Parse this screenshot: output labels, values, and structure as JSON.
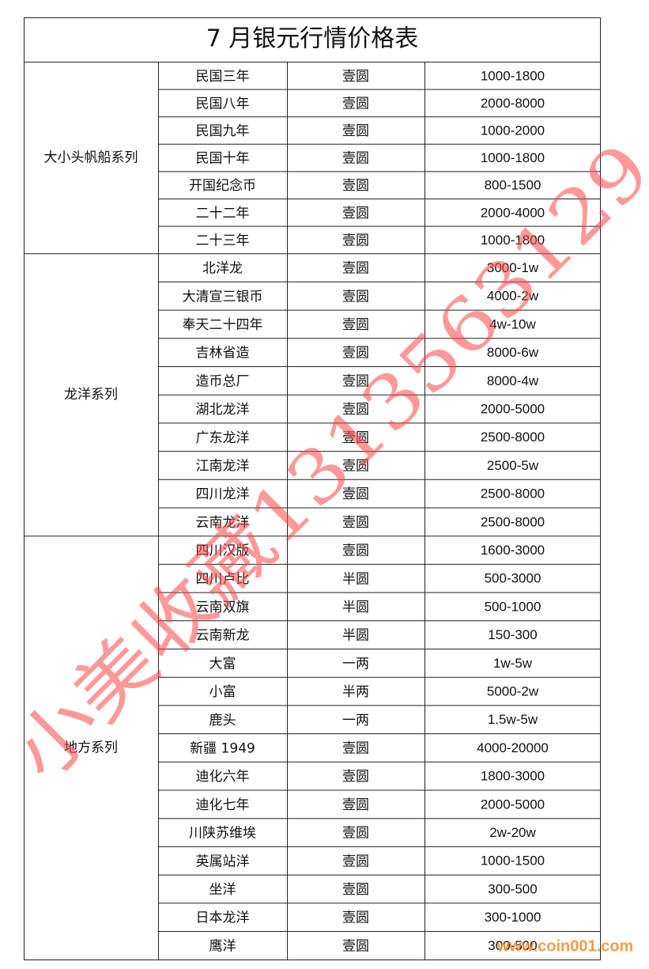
{
  "title": "7 月银元行情价格表",
  "groups": [
    {
      "name": "大小头帆船系列",
      "rows": [
        [
          "民国三年",
          "壹圆",
          "1000-1800"
        ],
        [
          "民国八年",
          "壹圆",
          "2000-8000"
        ],
        [
          "民国九年",
          "壹圆",
          "1000-2000"
        ],
        [
          "民国十年",
          "壹圆",
          "1000-1800"
        ],
        [
          "开国纪念币",
          "壹圆",
          "800-1500"
        ],
        [
          "二十二年",
          "壹圆",
          "2000-4000"
        ],
        [
          "二十三年",
          "壹圆",
          "1000-1800"
        ]
      ]
    },
    {
      "name": "龙洋系列",
      "rows": [
        [
          "北洋龙",
          "壹圆",
          "3000-1w"
        ],
        [
          "大清宣三银币",
          "壹圆",
          "4000-2w"
        ],
        [
          "奉天二十四年",
          "壹圆",
          "4w-10w"
        ],
        [
          "吉林省造",
          "壹圆",
          "8000-6w"
        ],
        [
          "造币总厂",
          "壹圆",
          "8000-4w"
        ],
        [
          "湖北龙洋",
          "壹圆",
          "2000-5000"
        ],
        [
          "广东龙洋",
          "壹圆",
          "2500-8000"
        ],
        [
          "江南龙洋",
          "壹圆",
          "2500-5w"
        ],
        [
          "四川龙洋",
          "壹圆",
          "2500-8000"
        ],
        [
          "云南龙洋",
          "壹圆",
          "2500-8000"
        ]
      ]
    },
    {
      "name": "地方系列",
      "rows": [
        [
          "四川汉版",
          "壹圆",
          "1600-3000"
        ],
        [
          "四川卢比",
          "半圆",
          "500-3000"
        ],
        [
          "云南双旗",
          "半圆",
          "500-1000"
        ],
        [
          "云南新龙",
          "半圆",
          "150-300"
        ],
        [
          "大富",
          "一两",
          "1w-5w"
        ],
        [
          "小富",
          "半两",
          "5000-2w"
        ],
        [
          "鹿头",
          "一两",
          "1.5w-5w"
        ],
        [
          "新疆 1949",
          "壹圆",
          "4000-20000"
        ],
        [
          "迪化六年",
          "壹圆",
          "1800-3000"
        ],
        [
          "迪化七年",
          "壹圆",
          "2000-5000"
        ],
        [
          "川陕苏维埃",
          "壹圆",
          "2w-20w"
        ],
        [
          "英属站洋",
          "壹圆",
          "1000-1500"
        ],
        [
          "坐洋",
          "壹圆",
          "300-500"
        ],
        [
          "日本龙洋",
          "壹圆",
          "300-1000"
        ],
        [
          "鹰洋",
          "壹圆",
          "300-500"
        ]
      ]
    }
  ],
  "watermark": "小美收藏1313563129",
  "site": "www.coin001.com"
}
